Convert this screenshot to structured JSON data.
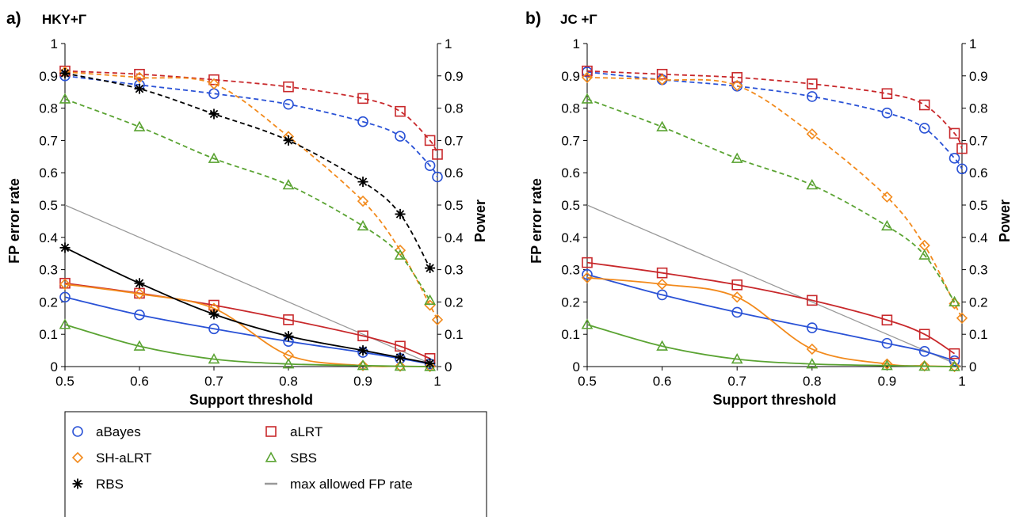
{
  "panels": [
    {
      "label": "a)",
      "title": "HKY+Γ",
      "chart_data": {
        "type": "line",
        "xlabel": "Support threshold",
        "ylabel": "FP error rate",
        "y2label": "Power",
        "xlim": [
          0.5,
          1
        ],
        "ylim": [
          0,
          1
        ],
        "xticks": [
          "0.5",
          "0.6",
          "0.7",
          "0.8",
          "0.9",
          "1"
        ],
        "yticks": [
          "0",
          "0.1",
          "0.2",
          "0.3",
          "0.4",
          "0.5",
          "0.6",
          "0.7",
          "0.8",
          "0.9",
          "1"
        ],
        "x": [
          0.5,
          0.6,
          0.7,
          0.8,
          0.9,
          0.95,
          0.99,
          1.0
        ],
        "series": [
          {
            "name": "aBayes",
            "metric": "FP error rate",
            "style": "solid",
            "color": "#2a52d6",
            "marker": "circle",
            "values": [
              0.215,
              0.16,
              0.117,
              0.078,
              0.044,
              0.025,
              0.008,
              null
            ]
          },
          {
            "name": "aLRT",
            "metric": "FP error rate",
            "style": "solid",
            "color": "#c8282b",
            "marker": "square",
            "values": [
              0.258,
              0.227,
              0.19,
              0.145,
              0.095,
              0.063,
              0.025,
              null
            ]
          },
          {
            "name": "SH-aLRT",
            "metric": "FP error rate",
            "style": "solid",
            "color": "#f28a1c",
            "marker": "diamond",
            "values": [
              0.255,
              0.225,
              0.18,
              0.035,
              0.003,
              0.001,
              0.0,
              null
            ]
          },
          {
            "name": "SBS",
            "metric": "FP error rate",
            "style": "solid",
            "color": "#5aa332",
            "marker": "triangle",
            "values": [
              0.13,
              0.063,
              0.023,
              0.008,
              0.003,
              0.001,
              0.0,
              null
            ]
          },
          {
            "name": "RBS",
            "metric": "FP error rate",
            "style": "solid",
            "color": "#000000",
            "marker": "star",
            "values": [
              0.368,
              0.258,
              0.162,
              0.094,
              0.05,
              0.028,
              0.01,
              null
            ]
          },
          {
            "name": "aBayes",
            "metric": "Power",
            "style": "dashed",
            "color": "#2a52d6",
            "marker": "circle",
            "values": [
              0.9,
              0.872,
              0.845,
              0.812,
              0.758,
              0.713,
              0.622,
              0.587
            ]
          },
          {
            "name": "aLRT",
            "metric": "Power",
            "style": "dashed",
            "color": "#c8282b",
            "marker": "square",
            "values": [
              0.915,
              0.905,
              0.888,
              0.866,
              0.83,
              0.79,
              0.7,
              0.657
            ]
          },
          {
            "name": "SH-aLRT",
            "metric": "Power",
            "style": "dashed",
            "color": "#f28a1c",
            "marker": "diamond",
            "values": [
              0.912,
              0.895,
              0.875,
              0.712,
              0.512,
              0.36,
              0.19,
              0.145
            ]
          },
          {
            "name": "SBS",
            "metric": "Power",
            "style": "dashed",
            "color": "#5aa332",
            "marker": "triangle",
            "values": [
              0.828,
              0.742,
              0.644,
              0.562,
              0.435,
              0.345,
              0.205,
              null
            ]
          },
          {
            "name": "RBS",
            "metric": "Power",
            "style": "dashed",
            "color": "#000000",
            "marker": "star",
            "values": [
              0.908,
              0.86,
              0.782,
              0.7,
              0.572,
              0.472,
              0.305,
              null
            ]
          }
        ],
        "reference_line": {
          "name": "max allowed FP rate",
          "color": "#999999",
          "x": [
            0.5,
            1.0
          ],
          "y": [
            0.5,
            0.0
          ]
        }
      }
    },
    {
      "label": "b)",
      "title": "JC +Γ",
      "chart_data": {
        "type": "line",
        "xlabel": "Support threshold",
        "ylabel": "FP error rate",
        "y2label": "Power",
        "xlim": [
          0.5,
          1
        ],
        "ylim": [
          0,
          1
        ],
        "xticks": [
          "0.5",
          "0.6",
          "0.7",
          "0.8",
          "0.9",
          "1"
        ],
        "yticks": [
          "0",
          "0.1",
          "0.2",
          "0.3",
          "0.4",
          "0.5",
          "0.6",
          "0.7",
          "0.8",
          "0.9",
          "1"
        ],
        "x": [
          0.5,
          0.6,
          0.7,
          0.8,
          0.9,
          0.95,
          0.99,
          1.0
        ],
        "series": [
          {
            "name": "aBayes",
            "metric": "FP error rate",
            "style": "solid",
            "color": "#2a52d6",
            "marker": "circle",
            "values": [
              0.285,
              0.222,
              0.168,
              0.12,
              0.072,
              0.047,
              0.018,
              null
            ]
          },
          {
            "name": "aLRT",
            "metric": "FP error rate",
            "style": "solid",
            "color": "#c8282b",
            "marker": "square",
            "values": [
              0.322,
              0.29,
              0.253,
              0.205,
              0.144,
              0.1,
              0.04,
              null
            ]
          },
          {
            "name": "SH-aLRT",
            "metric": "FP error rate",
            "style": "solid",
            "color": "#f28a1c",
            "marker": "diamond",
            "values": [
              0.275,
              0.255,
              0.215,
              0.054,
              0.008,
              0.002,
              0.0,
              null
            ]
          },
          {
            "name": "SBS",
            "metric": "FP error rate",
            "style": "solid",
            "color": "#5aa332",
            "marker": "triangle",
            "values": [
              0.13,
              0.063,
              0.023,
              0.008,
              0.003,
              0.001,
              0.0,
              null
            ]
          },
          {
            "name": "aBayes",
            "metric": "Power",
            "style": "dashed",
            "color": "#2a52d6",
            "marker": "circle",
            "values": [
              0.912,
              0.888,
              0.868,
              0.836,
              0.785,
              0.738,
              0.645,
              0.612
            ]
          },
          {
            "name": "aLRT",
            "metric": "Power",
            "style": "dashed",
            "color": "#c8282b",
            "marker": "square",
            "values": [
              0.915,
              0.905,
              0.895,
              0.875,
              0.845,
              0.81,
              0.722,
              0.675
            ]
          },
          {
            "name": "SH-aLRT",
            "metric": "Power",
            "style": "dashed",
            "color": "#f28a1c",
            "marker": "diamond",
            "values": [
              0.895,
              0.888,
              0.87,
              0.72,
              0.525,
              0.375,
              0.195,
              0.15
            ]
          },
          {
            "name": "SBS",
            "metric": "Power",
            "style": "dashed",
            "color": "#5aa332",
            "marker": "triangle",
            "values": [
              0.828,
              0.742,
              0.644,
              0.562,
              0.435,
              0.345,
              0.2,
              null
            ]
          }
        ],
        "reference_line": {
          "name": "max allowed FP rate",
          "color": "#999999",
          "x": [
            0.5,
            1.0
          ],
          "y": [
            0.5,
            0.0
          ]
        }
      }
    }
  ],
  "legend": {
    "items": [
      {
        "label": "aBayes",
        "color": "#2a52d6",
        "marker": "circle"
      },
      {
        "label": "aLRT",
        "color": "#c8282b",
        "marker": "square"
      },
      {
        "label": "SH-aLRT",
        "color": "#f28a1c",
        "marker": "diamond"
      },
      {
        "label": "SBS",
        "color": "#5aa332",
        "marker": "triangle"
      },
      {
        "label": "RBS",
        "color": "#000000",
        "marker": "star"
      },
      {
        "label": "max allowed FP rate",
        "color": "#999999",
        "marker": "line"
      }
    ]
  }
}
